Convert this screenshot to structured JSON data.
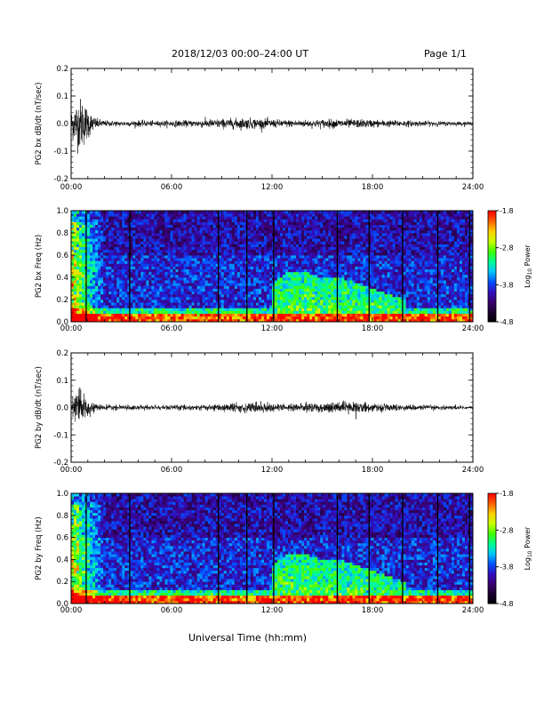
{
  "header": {
    "title": "2018/12/03  00:00–24:00 UT",
    "page": "Page 1/1"
  },
  "x_axis_title": "Universal Time (hh:mm)",
  "chart_data": [
    {
      "type": "line",
      "id": "bx_line",
      "ylabel": "PG2 bx dB/dt (nT/sec)",
      "xlim": [
        0,
        24
      ],
      "ylim": [
        -0.2,
        0.2
      ],
      "xticks": [
        "00:00",
        "06:00",
        "12:00",
        "18:00",
        "24:00"
      ],
      "yticks": [
        "0.2",
        "0.1",
        "0.0",
        "-0.1",
        "-0.2"
      ],
      "amplitude_envelope": {
        "hours": [
          0,
          0.25,
          0.5,
          0.75,
          1.0,
          1.25,
          1.5,
          2,
          3,
          4,
          5,
          6,
          7,
          8,
          9,
          10,
          11,
          12,
          13,
          14,
          15,
          16,
          17,
          18,
          19,
          20,
          21,
          22,
          23,
          24
        ],
        "amplitude": [
          0.045,
          0.08,
          0.1,
          0.09,
          0.06,
          0.035,
          0.02,
          0.012,
          0.01,
          0.012,
          0.01,
          0.012,
          0.012,
          0.016,
          0.018,
          0.02,
          0.02,
          0.016,
          0.014,
          0.014,
          0.016,
          0.017,
          0.016,
          0.015,
          0.013,
          0.012,
          0.01,
          0.009,
          0.008,
          0.007
        ]
      }
    },
    {
      "type": "heatmap",
      "id": "bx_spec",
      "ylabel": "PG2 bx Freq (Hz)",
      "xlim": [
        0,
        24
      ],
      "ylim": [
        0,
        1.0
      ],
      "xticks": [
        "00:00",
        "06:00",
        "12:00",
        "18:00",
        "24:00"
      ],
      "yticks": [
        "1.0",
        "0.8",
        "0.6",
        "0.4",
        "0.2",
        "0.0"
      ],
      "colorbar": {
        "label": "Log10 Power",
        "label_main": "Log",
        "label_sub": "10",
        "label_tail": " Power",
        "range": [
          -4.8,
          -1.8
        ],
        "ticks": [
          "-1.8",
          "-2.8",
          "-3.8",
          "-4.8"
        ]
      },
      "gap_lines_hours": [
        0.9,
        3.5,
        8.8,
        10.5,
        12.1,
        15.9,
        17.8,
        19.8,
        21.9,
        23.8
      ],
      "enhanced_band": {
        "hours": [
          12,
          13,
          14,
          15,
          16,
          17,
          18,
          19,
          20
        ],
        "upper_hz": [
          0.35,
          0.45,
          0.45,
          0.4,
          0.4,
          0.35,
          0.3,
          0.25,
          0.2
        ]
      }
    },
    {
      "type": "line",
      "id": "by_line",
      "ylabel": "PG2 by dB/dt (nT/sec)",
      "xlim": [
        0,
        24
      ],
      "ylim": [
        -0.2,
        0.2
      ],
      "xticks": [
        "00:00",
        "06:00",
        "12:00",
        "18:00",
        "24:00"
      ],
      "yticks": [
        "0.2",
        "0.1",
        "0.0",
        "-0.1",
        "-0.2"
      ],
      "amplitude_envelope": {
        "hours": [
          0,
          0.25,
          0.5,
          0.75,
          1.0,
          1.25,
          1.5,
          2,
          3,
          4,
          5,
          6,
          7,
          8,
          9,
          10,
          11,
          12,
          13,
          14,
          15,
          16,
          17,
          18,
          19,
          20,
          21,
          22,
          23,
          24
        ],
        "amplitude": [
          0.03,
          0.05,
          0.06,
          0.05,
          0.035,
          0.02,
          0.012,
          0.01,
          0.009,
          0.01,
          0.009,
          0.01,
          0.01,
          0.012,
          0.014,
          0.018,
          0.02,
          0.016,
          0.015,
          0.016,
          0.02,
          0.022,
          0.02,
          0.016,
          0.013,
          0.011,
          0.01,
          0.009,
          0.008,
          0.007
        ]
      }
    },
    {
      "type": "heatmap",
      "id": "by_spec",
      "ylabel": "PG2 by Freq (Hz)",
      "xlim": [
        0,
        24
      ],
      "ylim": [
        0,
        1.0
      ],
      "xticks": [
        "00:00",
        "06:00",
        "12:00",
        "18:00",
        "24:00"
      ],
      "yticks": [
        "1.0",
        "0.8",
        "0.6",
        "0.4",
        "0.2",
        "0.0"
      ],
      "colorbar": {
        "label": "Log10 Power",
        "label_main": "Log",
        "label_sub": "10",
        "label_tail": " Power",
        "range": [
          -4.8,
          -1.8
        ],
        "ticks": [
          "-1.8",
          "-2.8",
          "-3.8",
          "-4.8"
        ]
      },
      "gap_lines_hours": [
        0.9,
        3.5,
        8.8,
        10.5,
        12.1,
        15.9,
        17.8,
        19.8,
        21.9,
        23.8
      ],
      "enhanced_band": {
        "hours": [
          12,
          13,
          14,
          15,
          16,
          17,
          18,
          19,
          20
        ],
        "upper_hz": [
          0.35,
          0.45,
          0.45,
          0.4,
          0.4,
          0.35,
          0.3,
          0.25,
          0.2
        ]
      }
    }
  ],
  "colors": {
    "trace": "#000000",
    "axis": "#000000",
    "colormap": [
      "#000000",
      "#1a0030",
      "#3a0070",
      "#3010c0",
      "#0050ff",
      "#00c8ff",
      "#00ff90",
      "#40ff00",
      "#c8ff00",
      "#ffd000",
      "#ff6000",
      "#ff0000"
    ]
  }
}
